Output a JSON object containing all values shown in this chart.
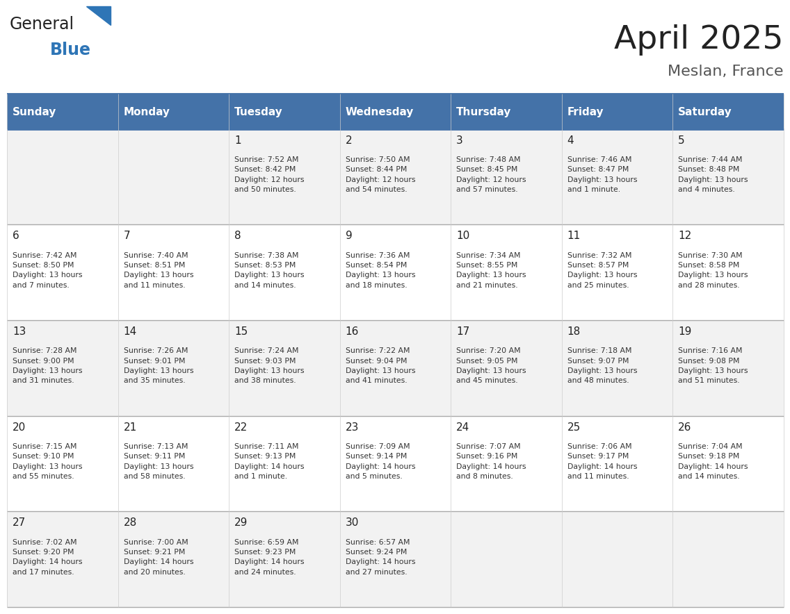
{
  "title": "April 2025",
  "subtitle": "Meslan, France",
  "days_of_week": [
    "Sunday",
    "Monday",
    "Tuesday",
    "Wednesday",
    "Thursday",
    "Friday",
    "Saturday"
  ],
  "header_bg": "#4472A8",
  "header_text": "#FFFFFF",
  "row_bg_odd": "#F2F2F2",
  "row_bg_even": "#FFFFFF",
  "cell_text_color": "#333333",
  "day_num_color": "#222222",
  "grid_color": "#4472A8",
  "row_line_color": "#AAAAAA",
  "title_color": "#222222",
  "subtitle_color": "#555555",
  "logo_general_color": "#222222",
  "logo_blue_color": "#2E75B6",
  "weeks": [
    [
      {
        "day": null,
        "info": null
      },
      {
        "day": null,
        "info": null
      },
      {
        "day": 1,
        "info": "Sunrise: 7:52 AM\nSunset: 8:42 PM\nDaylight: 12 hours\nand 50 minutes."
      },
      {
        "day": 2,
        "info": "Sunrise: 7:50 AM\nSunset: 8:44 PM\nDaylight: 12 hours\nand 54 minutes."
      },
      {
        "day": 3,
        "info": "Sunrise: 7:48 AM\nSunset: 8:45 PM\nDaylight: 12 hours\nand 57 minutes."
      },
      {
        "day": 4,
        "info": "Sunrise: 7:46 AM\nSunset: 8:47 PM\nDaylight: 13 hours\nand 1 minute."
      },
      {
        "day": 5,
        "info": "Sunrise: 7:44 AM\nSunset: 8:48 PM\nDaylight: 13 hours\nand 4 minutes."
      }
    ],
    [
      {
        "day": 6,
        "info": "Sunrise: 7:42 AM\nSunset: 8:50 PM\nDaylight: 13 hours\nand 7 minutes."
      },
      {
        "day": 7,
        "info": "Sunrise: 7:40 AM\nSunset: 8:51 PM\nDaylight: 13 hours\nand 11 minutes."
      },
      {
        "day": 8,
        "info": "Sunrise: 7:38 AM\nSunset: 8:53 PM\nDaylight: 13 hours\nand 14 minutes."
      },
      {
        "day": 9,
        "info": "Sunrise: 7:36 AM\nSunset: 8:54 PM\nDaylight: 13 hours\nand 18 minutes."
      },
      {
        "day": 10,
        "info": "Sunrise: 7:34 AM\nSunset: 8:55 PM\nDaylight: 13 hours\nand 21 minutes."
      },
      {
        "day": 11,
        "info": "Sunrise: 7:32 AM\nSunset: 8:57 PM\nDaylight: 13 hours\nand 25 minutes."
      },
      {
        "day": 12,
        "info": "Sunrise: 7:30 AM\nSunset: 8:58 PM\nDaylight: 13 hours\nand 28 minutes."
      }
    ],
    [
      {
        "day": 13,
        "info": "Sunrise: 7:28 AM\nSunset: 9:00 PM\nDaylight: 13 hours\nand 31 minutes."
      },
      {
        "day": 14,
        "info": "Sunrise: 7:26 AM\nSunset: 9:01 PM\nDaylight: 13 hours\nand 35 minutes."
      },
      {
        "day": 15,
        "info": "Sunrise: 7:24 AM\nSunset: 9:03 PM\nDaylight: 13 hours\nand 38 minutes."
      },
      {
        "day": 16,
        "info": "Sunrise: 7:22 AM\nSunset: 9:04 PM\nDaylight: 13 hours\nand 41 minutes."
      },
      {
        "day": 17,
        "info": "Sunrise: 7:20 AM\nSunset: 9:05 PM\nDaylight: 13 hours\nand 45 minutes."
      },
      {
        "day": 18,
        "info": "Sunrise: 7:18 AM\nSunset: 9:07 PM\nDaylight: 13 hours\nand 48 minutes."
      },
      {
        "day": 19,
        "info": "Sunrise: 7:16 AM\nSunset: 9:08 PM\nDaylight: 13 hours\nand 51 minutes."
      }
    ],
    [
      {
        "day": 20,
        "info": "Sunrise: 7:15 AM\nSunset: 9:10 PM\nDaylight: 13 hours\nand 55 minutes."
      },
      {
        "day": 21,
        "info": "Sunrise: 7:13 AM\nSunset: 9:11 PM\nDaylight: 13 hours\nand 58 minutes."
      },
      {
        "day": 22,
        "info": "Sunrise: 7:11 AM\nSunset: 9:13 PM\nDaylight: 14 hours\nand 1 minute."
      },
      {
        "day": 23,
        "info": "Sunrise: 7:09 AM\nSunset: 9:14 PM\nDaylight: 14 hours\nand 5 minutes."
      },
      {
        "day": 24,
        "info": "Sunrise: 7:07 AM\nSunset: 9:16 PM\nDaylight: 14 hours\nand 8 minutes."
      },
      {
        "day": 25,
        "info": "Sunrise: 7:06 AM\nSunset: 9:17 PM\nDaylight: 14 hours\nand 11 minutes."
      },
      {
        "day": 26,
        "info": "Sunrise: 7:04 AM\nSunset: 9:18 PM\nDaylight: 14 hours\nand 14 minutes."
      }
    ],
    [
      {
        "day": 27,
        "info": "Sunrise: 7:02 AM\nSunset: 9:20 PM\nDaylight: 14 hours\nand 17 minutes."
      },
      {
        "day": 28,
        "info": "Sunrise: 7:00 AM\nSunset: 9:21 PM\nDaylight: 14 hours\nand 20 minutes."
      },
      {
        "day": 29,
        "info": "Sunrise: 6:59 AM\nSunset: 9:23 PM\nDaylight: 14 hours\nand 24 minutes."
      },
      {
        "day": 30,
        "info": "Sunrise: 6:57 AM\nSunset: 9:24 PM\nDaylight: 14 hours\nand 27 minutes."
      },
      {
        "day": null,
        "info": null
      },
      {
        "day": null,
        "info": null
      },
      {
        "day": null,
        "info": null
      }
    ]
  ]
}
